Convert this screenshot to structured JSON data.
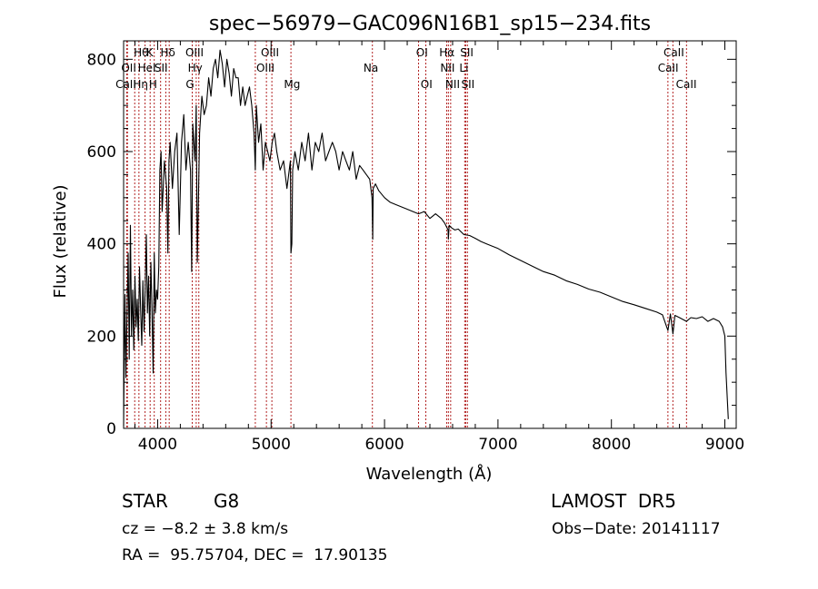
{
  "chart_data": {
    "type": "line",
    "title": "spec−56979−GAC096N16B1_sp15−234.fits",
    "xlabel": "Wavelength (Å)",
    "ylabel": "Flux (relative)",
    "xlim": [
      3700,
      9100
    ],
    "ylim": [
      0,
      840
    ],
    "xticks": [
      4000,
      5000,
      6000,
      7000,
      8000,
      9000
    ],
    "yticks": [
      0,
      200,
      400,
      600,
      800
    ],
    "grid": false,
    "line_color": "#000000",
    "line_marker_color": "#b22222",
    "series": [
      {
        "x": [
          3700,
          3705,
          3712,
          3720,
          3730,
          3740,
          3750,
          3760,
          3770,
          3780,
          3790,
          3800,
          3810,
          3820,
          3830,
          3840,
          3850,
          3860,
          3870,
          3880,
          3890,
          3900,
          3910,
          3920,
          3930,
          3940,
          3950,
          3960,
          3970,
          3980,
          3990,
          4000,
          4010,
          4020,
          4030,
          4040,
          4060,
          4080,
          4090,
          4100,
          4110,
          4130,
          4150,
          4170,
          4190,
          4210,
          4230,
          4250,
          4270,
          4290,
          4300,
          4310,
          4330,
          4340,
          4350,
          4370,
          4390,
          4410,
          4430,
          4450,
          4470,
          4490,
          4510,
          4530,
          4550,
          4570,
          4590,
          4610,
          4630,
          4650,
          4670,
          4690,
          4710,
          4730,
          4750,
          4770,
          4790,
          4810,
          4830,
          4850,
          4861,
          4870,
          4890,
          4910,
          4930,
          4950,
          4970,
          4990,
          5010,
          5030,
          5050,
          5080,
          5110,
          5140,
          5170,
          5175,
          5183,
          5190,
          5210,
          5240,
          5270,
          5300,
          5330,
          5360,
          5390,
          5420,
          5450,
          5480,
          5510,
          5540,
          5570,
          5600,
          5630,
          5660,
          5690,
          5720,
          5750,
          5780,
          5810,
          5840,
          5870,
          5890,
          5896,
          5900,
          5920,
          5950,
          6000,
          6050,
          6100,
          6150,
          6200,
          6250,
          6300,
          6350,
          6400,
          6450,
          6500,
          6530,
          6560,
          6563,
          6570,
          6590,
          6620,
          6650,
          6700,
          6750,
          6800,
          6850,
          6900,
          6950,
          7000,
          7100,
          7200,
          7300,
          7400,
          7500,
          7600,
          7700,
          7800,
          7900,
          8000,
          8100,
          8200,
          8300,
          8400,
          8450,
          8498,
          8520,
          8542,
          8560,
          8600,
          8662,
          8700,
          8750,
          8800,
          8850,
          8900,
          8950,
          8980,
          9000,
          9010,
          9030
        ],
        "y": [
          5,
          140,
          290,
          110,
          240,
          380,
          150,
          440,
          200,
          300,
          170,
          330,
          220,
          280,
          190,
          350,
          260,
          180,
          320,
          210,
          300,
          420,
          250,
          330,
          200,
          360,
          260,
          120,
          380,
          250,
          300,
          280,
          350,
          560,
          600,
          470,
          580,
          520,
          380,
          580,
          620,
          520,
          600,
          640,
          420,
          620,
          680,
          560,
          620,
          560,
          340,
          660,
          580,
          700,
          360,
          640,
          720,
          680,
          700,
          760,
          720,
          780,
          800,
          760,
          820,
          790,
          740,
          800,
          770,
          720,
          780,
          760,
          760,
          700,
          740,
          700,
          720,
          740,
          700,
          640,
          560,
          700,
          620,
          660,
          560,
          620,
          600,
          580,
          620,
          640,
          600,
          560,
          580,
          520,
          580,
          380,
          400,
          560,
          600,
          560,
          620,
          580,
          640,
          560,
          620,
          600,
          640,
          580,
          600,
          620,
          600,
          560,
          600,
          580,
          560,
          600,
          540,
          570,
          560,
          550,
          540,
          500,
          410,
          520,
          530,
          515,
          500,
          490,
          485,
          480,
          475,
          470,
          465,
          470,
          455,
          465,
          455,
          445,
          430,
          410,
          440,
          435,
          430,
          432,
          420,
          418,
          412,
          405,
          400,
          395,
          390,
          376,
          364,
          352,
          340,
          332,
          320,
          312,
          302,
          295,
          285,
          275,
          268,
          260,
          252,
          246,
          212,
          248,
          205,
          245,
          240,
          232,
          240,
          238,
          242,
          232,
          238,
          232,
          220,
          200,
          120,
          20
        ]
      }
    ],
    "line_markers": [
      {
        "x": 3727,
        "label": "OII"
      },
      {
        "x": 3734,
        "label": "CaII"
      },
      {
        "x": 3798,
        "label": ""
      },
      {
        "x": 3835,
        "label": ""
      },
      {
        "x": 3889,
        "label": "Hθ"
      },
      {
        "x": 3934,
        "label": "K"
      },
      {
        "x": 3970,
        "label": "Hη"
      },
      {
        "x": 4026,
        "label": "HeI"
      },
      {
        "x": 4072,
        "label": "SII"
      },
      {
        "x": 4102,
        "label": "Hδ"
      },
      {
        "x": 4305,
        "label": "G"
      },
      {
        "x": 4340,
        "label": "Hγ"
      },
      {
        "x": 4363,
        "label": "OIII"
      },
      {
        "x": 4861,
        "label": ""
      },
      {
        "x": 4959,
        "label": "OIII"
      },
      {
        "x": 5007,
        "label": "OIII"
      },
      {
        "x": 5175,
        "label": "Mg"
      },
      {
        "x": 5893,
        "label": "Na"
      },
      {
        "x": 6300,
        "label": "OI"
      },
      {
        "x": 6364,
        "label": "OI"
      },
      {
        "x": 6548,
        "label": "NII"
      },
      {
        "x": 6563,
        "label": "Hα"
      },
      {
        "x": 6583,
        "label": "NII"
      },
      {
        "x": 6707,
        "label": "Li"
      },
      {
        "x": 6716,
        "label": "SII"
      },
      {
        "x": 6731,
        "label": "SII"
      },
      {
        "x": 8498,
        "label": "CaII"
      },
      {
        "x": 8542,
        "label": "CaII"
      },
      {
        "x": 8662,
        "label": "CaII"
      }
    ],
    "annotations": [
      {
        "text": "Hθ",
        "x": 3855,
        "row": 1
      },
      {
        "text": "K",
        "x": 3930,
        "row": 1
      },
      {
        "text": "Hδ",
        "x": 4090,
        "row": 1
      },
      {
        "text": "OIII",
        "x": 4325,
        "row": 1
      },
      {
        "text": "OIII",
        "x": 4990,
        "row": 1
      },
      {
        "text": "OI",
        "x": 6330,
        "row": 1
      },
      {
        "text": "Hα",
        "x": 6550,
        "row": 1
      },
      {
        "text": "SII",
        "x": 6725,
        "row": 1
      },
      {
        "text": "CaII",
        "x": 8550,
        "row": 1
      },
      {
        "text": "OII",
        "x": 3745,
        "row": 2
      },
      {
        "text": "HeI",
        "x": 3905,
        "row": 2
      },
      {
        "text": "SII",
        "x": 4030,
        "row": 2
      },
      {
        "text": "Hγ",
        "x": 4330,
        "row": 2
      },
      {
        "text": "OIII",
        "x": 4950,
        "row": 2
      },
      {
        "text": "Na",
        "x": 5880,
        "row": 2
      },
      {
        "text": "NII",
        "x": 6555,
        "row": 2
      },
      {
        "text": "Li",
        "x": 6700,
        "row": 2
      },
      {
        "text": "CaII",
        "x": 8500,
        "row": 2
      },
      {
        "text": "CaII",
        "x": 3720,
        "row": 3
      },
      {
        "text": "Hη",
        "x": 3850,
        "row": 3
      },
      {
        "text": "H",
        "x": 3960,
        "row": 3
      },
      {
        "text": "G",
        "x": 4285,
        "row": 3
      },
      {
        "text": "Mg",
        "x": 5185,
        "row": 3
      },
      {
        "text": "OI",
        "x": 6370,
        "row": 3
      },
      {
        "text": "NII",
        "x": 6600,
        "row": 3
      },
      {
        "text": "SII",
        "x": 6735,
        "row": 3
      },
      {
        "text": "CaII",
        "x": 8660,
        "row": 3
      }
    ]
  },
  "info": {
    "object_class": "STAR",
    "subclass": "G8",
    "survey": "LAMOST  DR5",
    "redshift": "cz = −8.2 ± 3.8 km/s",
    "obs_date": "Obs−Date: 20141117",
    "coords": "RA =  95.75704, DEC =  17.90135"
  }
}
